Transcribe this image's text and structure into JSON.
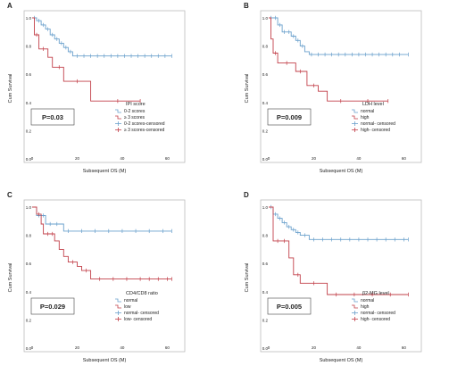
{
  "colors": {
    "series1": "#6aa0cc",
    "series2": "#c2404a",
    "frame": "#bbbbbb",
    "text": "#222222"
  },
  "chart_data": [
    {
      "panel_letter": "A",
      "type": "line",
      "ylabel": "Cum Survival",
      "xlabel": "Subsequent OS (M)",
      "xlim": [
        0,
        65
      ],
      "ylim": [
        0,
        1.0
      ],
      "xticks": [
        "0",
        "20",
        "40",
        "60"
      ],
      "yticks": [
        "0.0",
        "0.2",
        "0.4",
        "0.6",
        "0.8",
        "1.0"
      ],
      "pvalue": "P=0.03",
      "legend_title": "IPI score",
      "legend": [
        {
          "label": "0-2 scores",
          "kind": "line",
          "color": "#6aa0cc"
        },
        {
          "label": "≥ 3 scores",
          "kind": "line",
          "color": "#c2404a"
        },
        {
          "label": "0-2 scores-censored",
          "kind": "mark",
          "color": "#6aa0cc"
        },
        {
          "label": "≥ 3 scores-censored",
          "kind": "mark",
          "color": "#c2404a"
        }
      ],
      "series": [
        {
          "color": "#6aa0cc",
          "steps": [
            [
              0,
              1.0
            ],
            [
              2,
              0.98
            ],
            [
              4,
              0.95
            ],
            [
              6,
              0.92
            ],
            [
              8,
              0.88
            ],
            [
              10,
              0.85
            ],
            [
              12,
              0.82
            ],
            [
              14,
              0.79
            ],
            [
              16,
              0.76
            ],
            [
              18,
              0.73
            ],
            [
              62,
              0.73
            ]
          ],
          "censored": [
            1,
            3,
            5,
            7,
            9,
            11,
            13,
            15,
            17,
            20,
            23,
            26,
            29,
            32,
            35,
            38,
            41,
            44,
            47,
            50,
            53,
            56,
            59,
            62
          ]
        },
        {
          "color": "#c2404a",
          "steps": [
            [
              0,
              1.0
            ],
            [
              1,
              0.88
            ],
            [
              3,
              0.78
            ],
            [
              7,
              0.72
            ],
            [
              9,
              0.65
            ],
            [
              14,
              0.55
            ],
            [
              26,
              0.41
            ],
            [
              48,
              0.41
            ]
          ],
          "censored": [
            2,
            5,
            12,
            20,
            38,
            48
          ]
        }
      ]
    },
    {
      "panel_letter": "B",
      "type": "line",
      "ylabel": "Cum Survival",
      "xlabel": "Subsequent OS (M)",
      "xlim": [
        0,
        65
      ],
      "ylim": [
        0,
        1.0
      ],
      "xticks": [
        "0",
        "20",
        "40",
        "60"
      ],
      "yticks": [
        "0.0",
        "0.2",
        "0.4",
        "0.6",
        "0.8",
        "1.0"
      ],
      "pvalue": "P=0.009",
      "legend_title": "LDH level",
      "legend": [
        {
          "label": "normal",
          "kind": "line",
          "color": "#6aa0cc"
        },
        {
          "label": "high",
          "kind": "line",
          "color": "#c2404a"
        },
        {
          "label": "normal- censored",
          "kind": "mark",
          "color": "#6aa0cc"
        },
        {
          "label": "high- censored",
          "kind": "mark",
          "color": "#c2404a"
        }
      ],
      "series": [
        {
          "color": "#6aa0cc",
          "steps": [
            [
              0,
              1.0
            ],
            [
              4,
              0.95
            ],
            [
              6,
              0.9
            ],
            [
              10,
              0.87
            ],
            [
              12,
              0.84
            ],
            [
              14,
              0.8
            ],
            [
              16,
              0.76
            ],
            [
              18,
              0.74
            ],
            [
              62,
              0.74
            ]
          ],
          "censored": [
            1,
            3,
            5,
            7,
            9,
            11,
            13,
            15,
            19,
            22,
            25,
            28,
            31,
            34,
            37,
            40,
            43,
            46,
            49,
            52,
            55,
            58,
            62
          ]
        },
        {
          "color": "#c2404a",
          "steps": [
            [
              0,
              1.0
            ],
            [
              1,
              0.85
            ],
            [
              2,
              0.75
            ],
            [
              4,
              0.68
            ],
            [
              12,
              0.62
            ],
            [
              17,
              0.52
            ],
            [
              22,
              0.48
            ],
            [
              26,
              0.41
            ],
            [
              53,
              0.41
            ]
          ],
          "censored": [
            3,
            8,
            14,
            20,
            32,
            44,
            53
          ]
        }
      ]
    },
    {
      "panel_letter": "C",
      "type": "line",
      "ylabel": "Cum Survival",
      "xlabel": "Subsequent OS (M)",
      "xlim": [
        0,
        65
      ],
      "ylim": [
        0,
        1.0
      ],
      "xticks": [
        "0",
        "20",
        "40",
        "60"
      ],
      "yticks": [
        "0.0",
        "0.2",
        "0.4",
        "0.6",
        "0.8",
        "1.0"
      ],
      "pvalue": "P=0.029",
      "legend_title": "CD4/CD8 ratio",
      "legend": [
        {
          "label": "normal",
          "kind": "line",
          "color": "#6aa0cc"
        },
        {
          "label": "low",
          "kind": "line",
          "color": "#c2404a"
        },
        {
          "label": "normal- censored",
          "kind": "mark",
          "color": "#6aa0cc"
        },
        {
          "label": "low- censored",
          "kind": "mark",
          "color": "#c2404a"
        }
      ],
      "series": [
        {
          "color": "#6aa0cc",
          "steps": [
            [
              0,
              1.0
            ],
            [
              2,
              0.94
            ],
            [
              6,
              0.88
            ],
            [
              14,
              0.83
            ],
            [
              62,
              0.83
            ]
          ],
          "censored": [
            3,
            5,
            8,
            11,
            16,
            22,
            28,
            34,
            40,
            46,
            52,
            58,
            62
          ]
        },
        {
          "color": "#c2404a",
          "steps": [
            [
              0,
              1.0
            ],
            [
              2,
              0.95
            ],
            [
              4,
              0.88
            ],
            [
              5,
              0.81
            ],
            [
              10,
              0.76
            ],
            [
              12,
              0.7
            ],
            [
              14,
              0.65
            ],
            [
              16,
              0.61
            ],
            [
              20,
              0.58
            ],
            [
              22,
              0.55
            ],
            [
              26,
              0.49
            ],
            [
              62,
              0.49
            ]
          ],
          "censored": [
            3,
            7,
            9,
            18,
            24,
            30,
            36,
            42,
            48,
            52,
            56,
            60,
            62
          ]
        }
      ]
    },
    {
      "panel_letter": "D",
      "type": "line",
      "ylabel": "Cum Survival",
      "xlabel": "Subsequent OS (M)",
      "xlim": [
        0,
        65
      ],
      "ylim": [
        0,
        1.0
      ],
      "xticks": [
        "0",
        "20",
        "40",
        "60"
      ],
      "yticks": [
        "0.0",
        "0.2",
        "0.4",
        "0.6",
        "0.8",
        "1.0"
      ],
      "pvalue": "P=0.005",
      "legend_title": "β2-MG level",
      "legend": [
        {
          "label": "normal",
          "kind": "line",
          "color": "#6aa0cc"
        },
        {
          "label": "high",
          "kind": "line",
          "color": "#c2404a"
        },
        {
          "label": "normal- censored",
          "kind": "mark",
          "color": "#6aa0cc"
        },
        {
          "label": "high- censored",
          "kind": "mark",
          "color": "#c2404a"
        }
      ],
      "series": [
        {
          "color": "#6aa0cc",
          "steps": [
            [
              0,
              1.0
            ],
            [
              2,
              0.95
            ],
            [
              4,
              0.92
            ],
            [
              6,
              0.89
            ],
            [
              8,
              0.86
            ],
            [
              10,
              0.84
            ],
            [
              12,
              0.82
            ],
            [
              14,
              0.8
            ],
            [
              18,
              0.77
            ],
            [
              62,
              0.77
            ]
          ],
          "censored": [
            1,
            3,
            5,
            7,
            9,
            11,
            13,
            16,
            20,
            24,
            28,
            32,
            36,
            40,
            44,
            48,
            52,
            56,
            60,
            62
          ]
        },
        {
          "color": "#c2404a",
          "steps": [
            [
              0,
              1.0
            ],
            [
              2,
              0.76
            ],
            [
              9,
              0.64
            ],
            [
              11,
              0.52
            ],
            [
              14,
              0.46
            ],
            [
              26,
              0.38
            ],
            [
              62,
              0.38
            ]
          ],
          "censored": [
            4,
            7,
            13,
            20,
            30,
            38,
            46,
            54,
            62
          ]
        }
      ]
    }
  ]
}
